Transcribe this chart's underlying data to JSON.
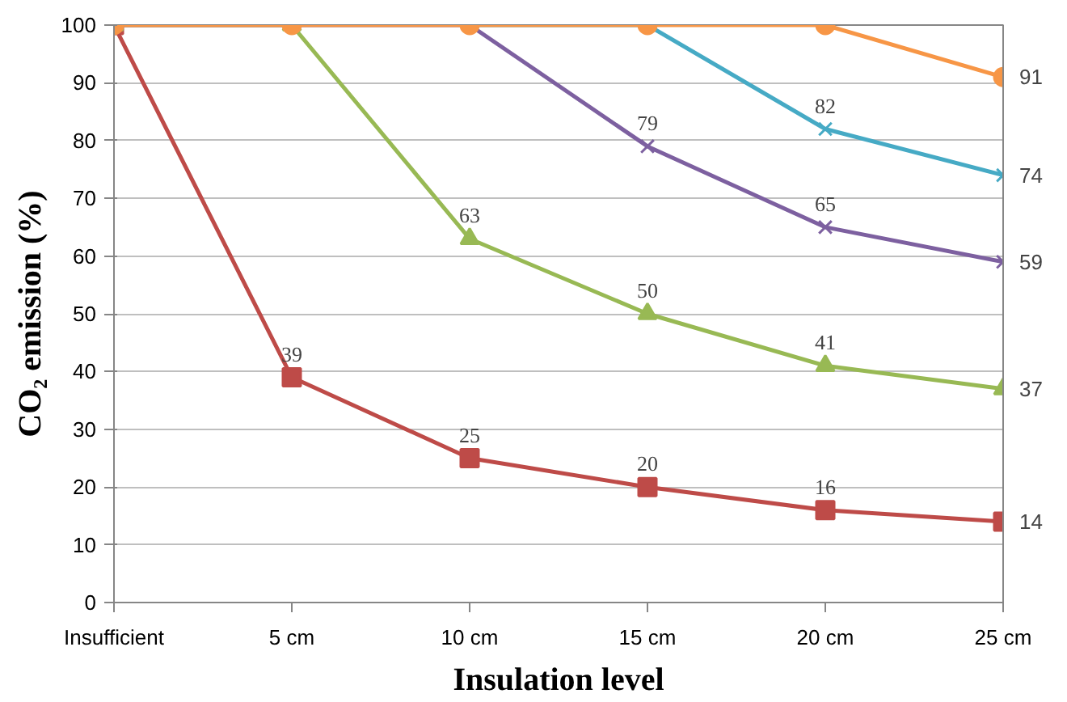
{
  "chart_data": {
    "type": "line",
    "xlabel": "Insulation level",
    "ylabel": "CO₂ emission (%)",
    "categories": [
      "Insufficient",
      "5 cm",
      "10 cm",
      "15 cm",
      "20 cm",
      "25 cm"
    ],
    "ylim": [
      0,
      100
    ],
    "yticks": [
      0,
      10,
      20,
      30,
      40,
      50,
      60,
      70,
      80,
      90,
      100
    ],
    "grid": "y",
    "series": [
      {
        "color": "#be4b48",
        "marker": "square",
        "values": [
          100,
          39,
          25,
          20,
          16,
          14
        ],
        "value_labels": [
          null,
          "39",
          "25",
          "20",
          "16",
          "14"
        ]
      },
      {
        "color": "#98b954",
        "marker": "triangle",
        "values": [
          100,
          100,
          63,
          50,
          41,
          37
        ],
        "value_labels": [
          null,
          null,
          "63",
          "50",
          "41",
          "37"
        ]
      },
      {
        "color": "#7d60a0",
        "marker": "cross",
        "values": [
          100,
          100,
          100,
          79,
          65,
          59
        ],
        "value_labels": [
          null,
          null,
          null,
          "79",
          "65",
          "59"
        ]
      },
      {
        "color": "#46aac5",
        "marker": "cross",
        "values": [
          null,
          null,
          100,
          100,
          82,
          74
        ],
        "value_labels": [
          null,
          null,
          null,
          null,
          "82",
          "74"
        ]
      },
      {
        "color": "#f79646",
        "marker": "circle",
        "values": [
          100,
          100,
          100,
          100,
          100,
          91
        ],
        "value_labels": [
          null,
          null,
          null,
          null,
          null,
          "91"
        ]
      }
    ]
  }
}
